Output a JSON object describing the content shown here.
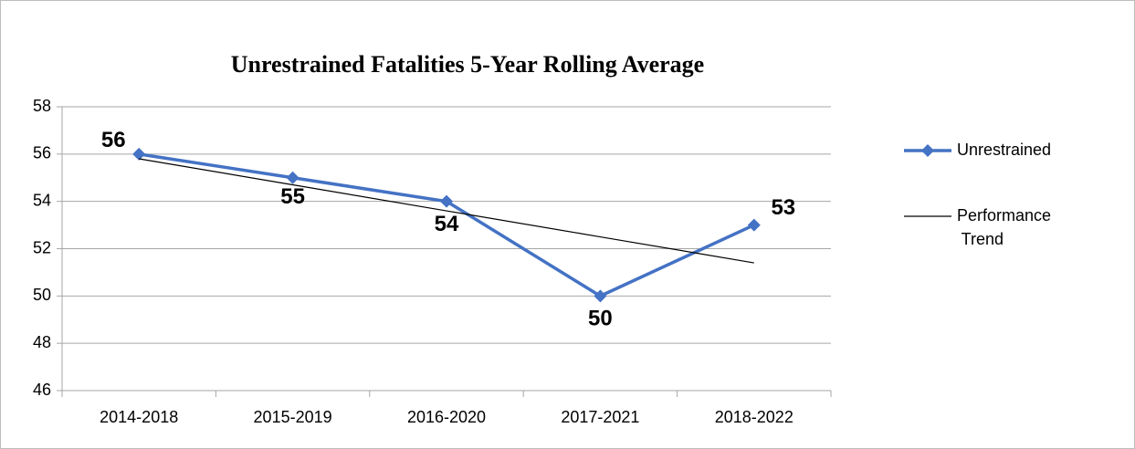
{
  "chart_data": {
    "type": "line",
    "title": "Unrestrained Fatalities 5-Year Rolling Average",
    "categories": [
      "2014-2018",
      "2015-2019",
      "2016-2020",
      "2017-2021",
      "2018-2022"
    ],
    "series": [
      {
        "name": "Unrestrained",
        "color": "#4472c4",
        "values": [
          56,
          55,
          54,
          50,
          53
        ],
        "marker": "diamond",
        "data_labels": true
      },
      {
        "name": "Performance Trend",
        "color": "#000000",
        "values": [
          55.8,
          54.7,
          53.6,
          52.5,
          51.4
        ],
        "marker": "none",
        "data_labels": false
      }
    ],
    "ylim": [
      46,
      58
    ],
    "yticks": [
      46,
      48,
      50,
      52,
      54,
      56,
      58
    ],
    "grid": true,
    "legend": "right"
  }
}
